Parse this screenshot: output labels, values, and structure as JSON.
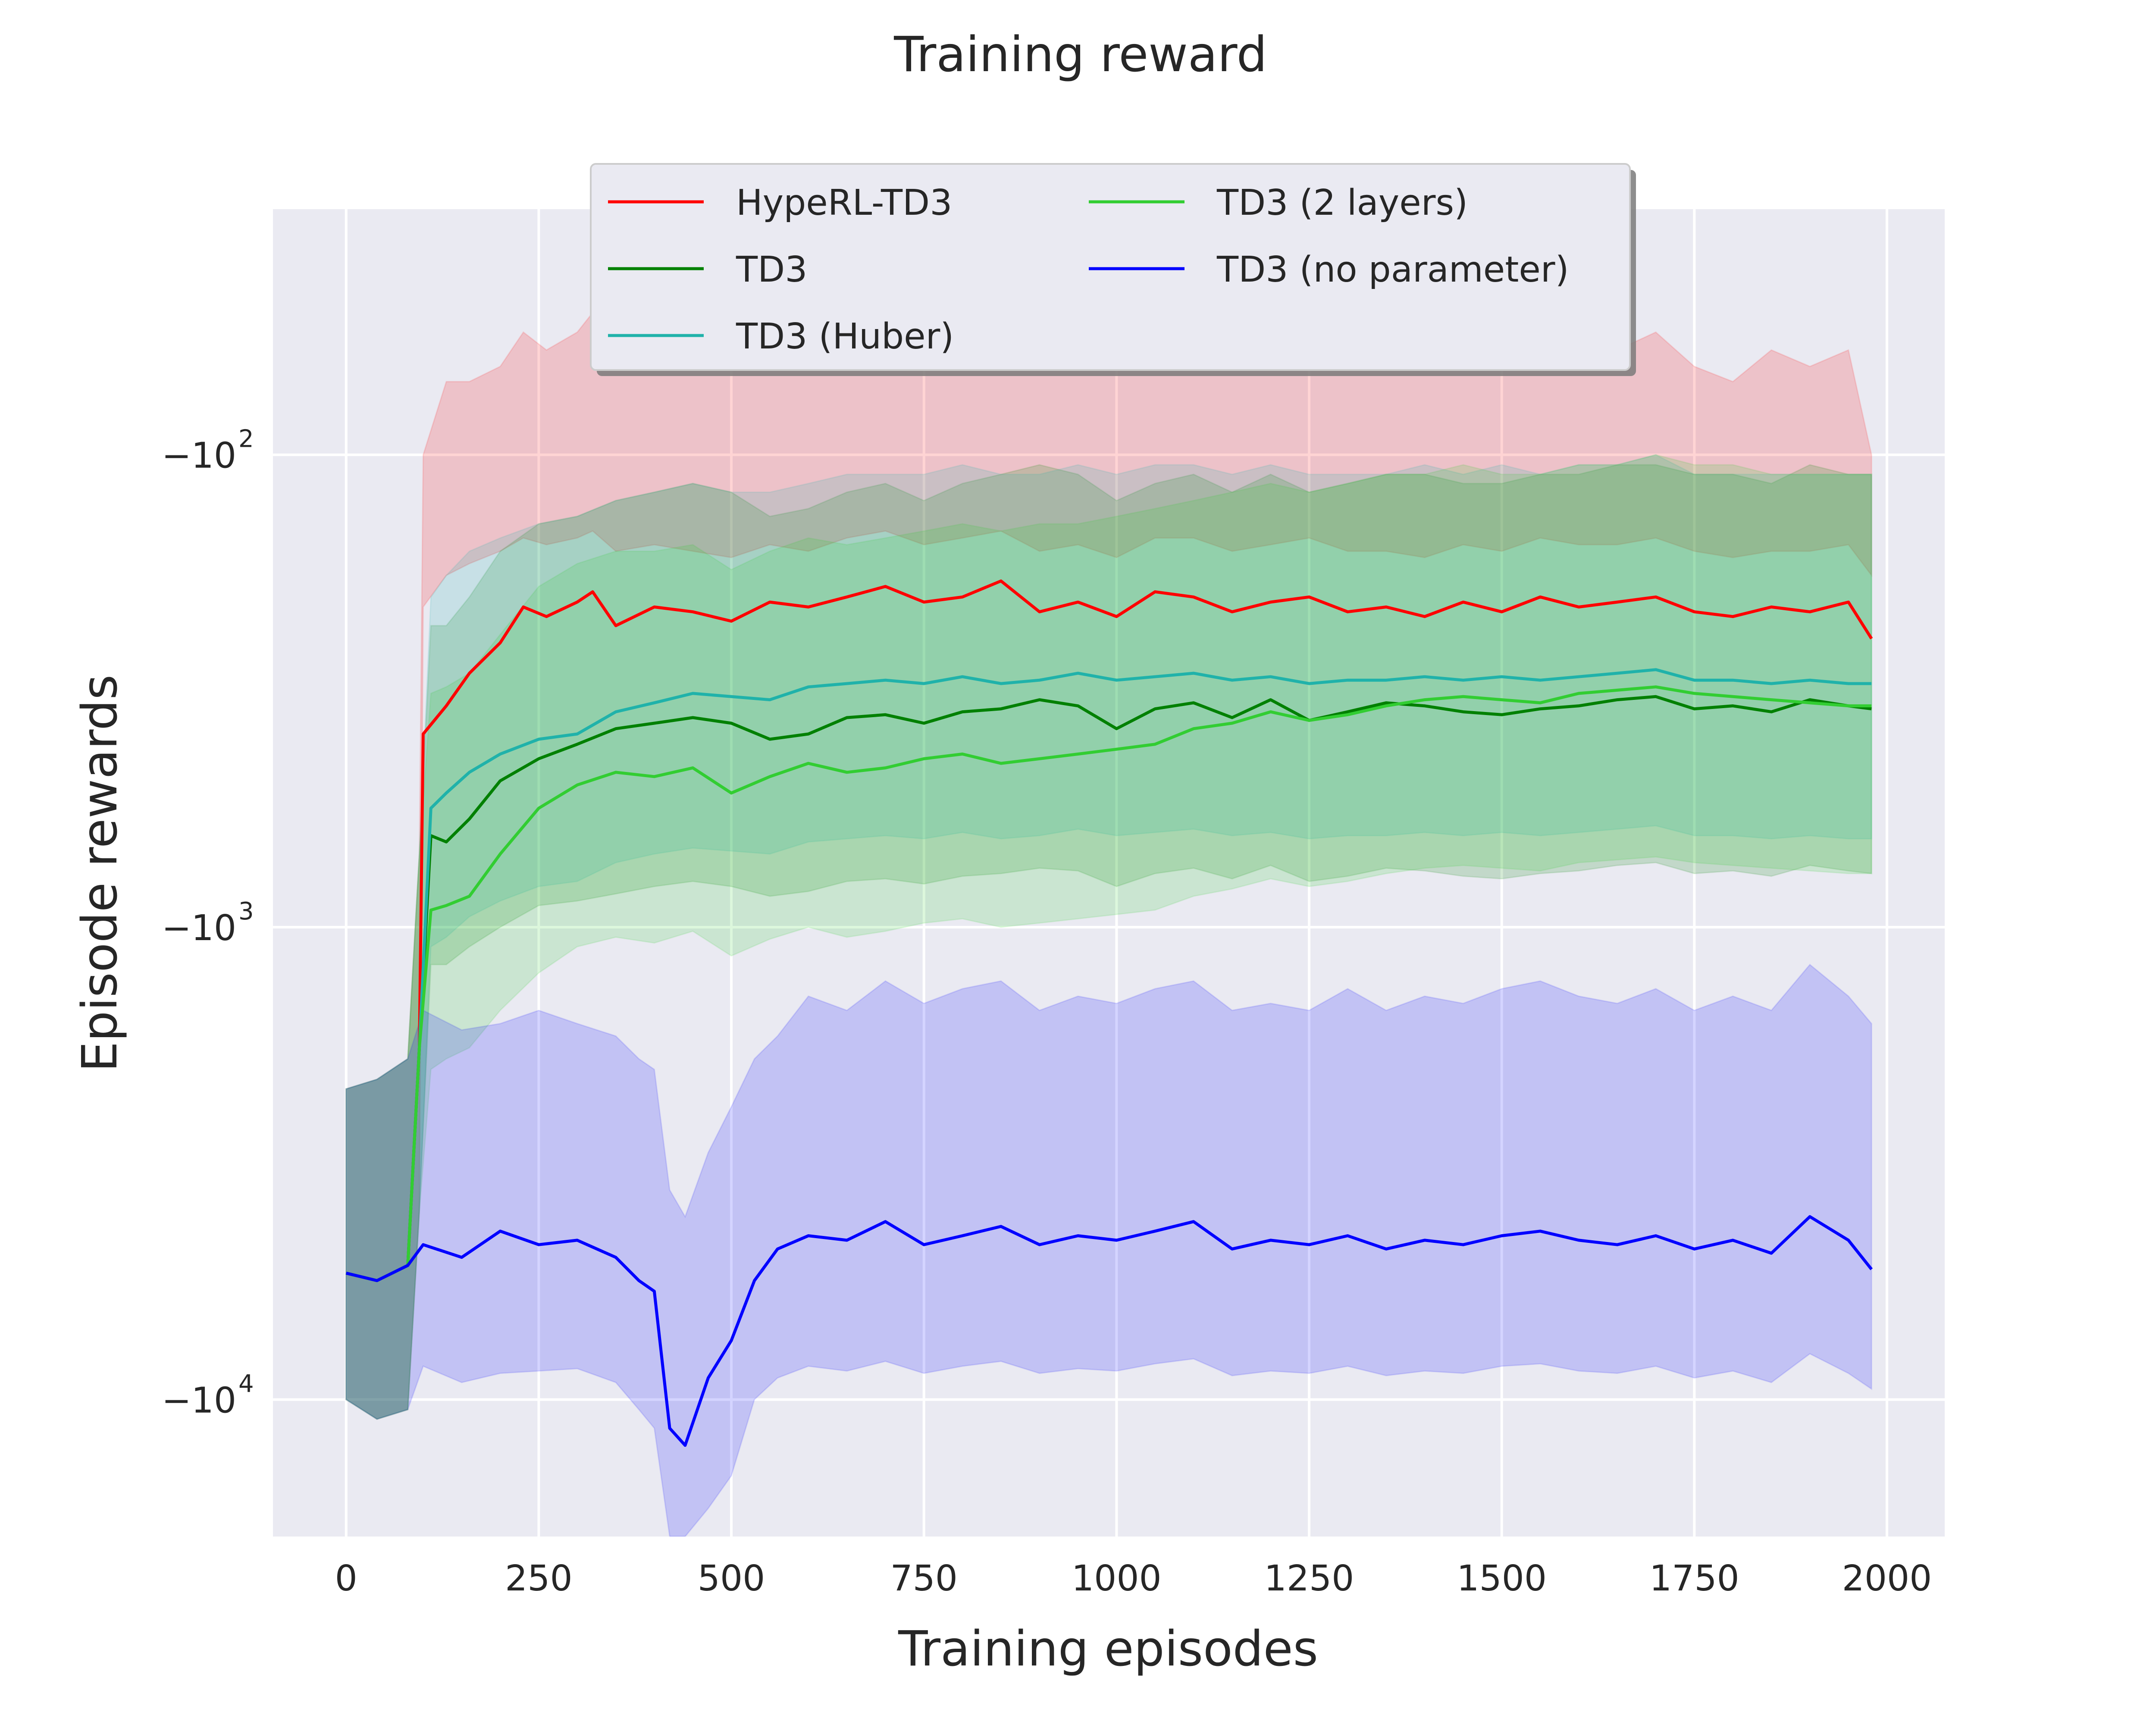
{
  "chart_data": {
    "type": "line",
    "title": "Training reward",
    "xlabel": "Training episodes",
    "ylabel": "Episode rewards",
    "y_scale": "symlog-negative",
    "xlim": [
      -95,
      2075
    ],
    "x_ticks": [
      0,
      250,
      500,
      750,
      1000,
      1250,
      1500,
      1750,
      2000
    ],
    "x_tick_labels": [
      "0",
      "250",
      "500",
      "750",
      "1000",
      "1250",
      "1500",
      "1750",
      "2000"
    ],
    "y_ticks": [
      {
        "value": -100,
        "base": "−10",
        "exp": "2"
      },
      {
        "value": -1000,
        "base": "−10",
        "exp": "3"
      },
      {
        "value": -10000,
        "base": "−10",
        "exp": "4"
      }
    ],
    "y_log10_range": [
      1.48,
      4.29
    ],
    "grid": true,
    "legend_location": "upper center",
    "legend_columns": 2,
    "series": [
      {
        "name": "HypeRL-TD3",
        "color": "#ff0000",
        "x": [
          0,
          40,
          80,
          95,
          100,
          130,
          160,
          200,
          230,
          260,
          300,
          320,
          350,
          400,
          450,
          500,
          550,
          600,
          650,
          700,
          750,
          800,
          850,
          900,
          950,
          1000,
          1050,
          1100,
          1150,
          1200,
          1250,
          1300,
          1350,
          1400,
          1450,
          1500,
          1550,
          1600,
          1650,
          1700,
          1750,
          1800,
          1850,
          1900,
          1950,
          1980
        ],
        "y": [
          -5400,
          -5600,
          -5200,
          -1800,
          -390,
          -340,
          -290,
          -250,
          -210,
          -220,
          -205,
          -195,
          -230,
          -210,
          -215,
          -225,
          -205,
          -210,
          -200,
          -190,
          -205,
          -200,
          -185,
          -215,
          -205,
          -220,
          -195,
          -200,
          -215,
          -205,
          -200,
          -215,
          -210,
          -220,
          -205,
          -215,
          -200,
          -210,
          -205,
          -200,
          -215,
          -220,
          -210,
          -215,
          -205,
          -245
        ],
        "band_upper": [
          -2200,
          -2100,
          -1900,
          -700,
          -100,
          -70,
          -70,
          -65,
          -55,
          -60,
          -55,
          -50,
          -60,
          -55,
          -60,
          -65,
          -55,
          -60,
          -55,
          -50,
          -60,
          -55,
          -50,
          -60,
          -55,
          -60,
          -55,
          -55,
          -60,
          -55,
          -55,
          -60,
          -60,
          -65,
          -60,
          -60,
          -55,
          -60,
          -60,
          -55,
          -65,
          -70,
          -60,
          -65,
          -60,
          -100
        ],
        "band_lower": [
          -10000,
          -11000,
          -10500,
          -4000,
          -210,
          -180,
          -170,
          -160,
          -150,
          -155,
          -150,
          -145,
          -160,
          -155,
          -160,
          -165,
          -155,
          -160,
          -150,
          -145,
          -155,
          -150,
          -145,
          -160,
          -155,
          -165,
          -150,
          -150,
          -160,
          -155,
          -150,
          -160,
          -160,
          -165,
          -155,
          -160,
          -150,
          -155,
          -155,
          -150,
          -160,
          -165,
          -160,
          -160,
          -155,
          -180
        ]
      },
      {
        "name": "TD3",
        "color": "#008000",
        "x": [
          0,
          40,
          80,
          95,
          110,
          130,
          160,
          200,
          250,
          300,
          350,
          400,
          450,
          500,
          550,
          600,
          650,
          700,
          750,
          800,
          850,
          900,
          950,
          1000,
          1050,
          1100,
          1150,
          1200,
          1250,
          1300,
          1350,
          1400,
          1450,
          1500,
          1550,
          1600,
          1650,
          1700,
          1750,
          1800,
          1850,
          1900,
          1950,
          1980
        ],
        "y": [
          -5400,
          -5600,
          -5200,
          -1800,
          -640,
          -660,
          -590,
          -490,
          -440,
          -410,
          -380,
          -370,
          -360,
          -370,
          -400,
          -390,
          -360,
          -355,
          -370,
          -350,
          -345,
          -330,
          -340,
          -380,
          -345,
          -335,
          -360,
          -330,
          -365,
          -350,
          -335,
          -340,
          -350,
          -355,
          -345,
          -340,
          -330,
          -325,
          -345,
          -340,
          -350,
          -330,
          -340,
          -345
        ],
        "band_upper": [
          -2200,
          -2100,
          -1900,
          -700,
          -230,
          -230,
          -200,
          -160,
          -140,
          -135,
          -125,
          -120,
          -115,
          -120,
          -135,
          -130,
          -120,
          -115,
          -125,
          -115,
          -110,
          -105,
          -110,
          -125,
          -115,
          -110,
          -120,
          -110,
          -120,
          -115,
          -110,
          -110,
          -115,
          -115,
          -110,
          -110,
          -105,
          -105,
          -110,
          -110,
          -115,
          -105,
          -110,
          -110
        ],
        "band_lower": [
          -10000,
          -11000,
          -10500,
          -4000,
          -1200,
          -1200,
          -1100,
          -1000,
          -900,
          -880,
          -850,
          -820,
          -800,
          -820,
          -860,
          -840,
          -800,
          -790,
          -810,
          -780,
          -770,
          -750,
          -760,
          -820,
          -770,
          -750,
          -790,
          -740,
          -800,
          -780,
          -750,
          -760,
          -780,
          -790,
          -770,
          -760,
          -740,
          -730,
          -770,
          -760,
          -780,
          -740,
          -760,
          -770
        ]
      },
      {
        "name": "TD3 (Huber)",
        "color": "#20b2aa",
        "x": [
          0,
          40,
          80,
          95,
          110,
          130,
          160,
          200,
          250,
          300,
          350,
          400,
          450,
          500,
          550,
          600,
          650,
          700,
          750,
          800,
          850,
          900,
          950,
          1000,
          1050,
          1100,
          1150,
          1200,
          1250,
          1300,
          1350,
          1400,
          1450,
          1500,
          1550,
          1600,
          1650,
          1700,
          1750,
          1800,
          1850,
          1900,
          1950,
          1980
        ],
        "y": [
          -5400,
          -5600,
          -5200,
          -1800,
          -560,
          -520,
          -470,
          -430,
          -400,
          -390,
          -350,
          -335,
          -320,
          -325,
          -330,
          -310,
          -305,
          -300,
          -305,
          -295,
          -305,
          -300,
          -290,
          -300,
          -295,
          -290,
          -300,
          -295,
          -305,
          -300,
          -300,
          -295,
          -300,
          -295,
          -300,
          -295,
          -290,
          -285,
          -300,
          -300,
          -305,
          -300,
          -305,
          -305
        ],
        "band_upper": [
          -2200,
          -2100,
          -1900,
          -700,
          -200,
          -180,
          -160,
          -150,
          -140,
          -135,
          -125,
          -120,
          -115,
          -120,
          -120,
          -115,
          -110,
          -110,
          -110,
          -105,
          -110,
          -110,
          -105,
          -110,
          -105,
          -105,
          -110,
          -105,
          -110,
          -110,
          -110,
          -105,
          -110,
          -105,
          -110,
          -105,
          -105,
          -100,
          -110,
          -110,
          -110,
          -110,
          -110,
          -110
        ],
        "band_lower": [
          -10000,
          -11000,
          -10500,
          -4000,
          -1100,
          -1050,
          -950,
          -880,
          -820,
          -800,
          -730,
          -700,
          -680,
          -690,
          -700,
          -660,
          -650,
          -640,
          -650,
          -630,
          -650,
          -640,
          -620,
          -640,
          -630,
          -620,
          -640,
          -630,
          -650,
          -640,
          -640,
          -630,
          -640,
          -630,
          -640,
          -630,
          -620,
          -610,
          -640,
          -640,
          -650,
          -640,
          -650,
          -650
        ]
      },
      {
        "name": "TD3 (2 layers)",
        "color": "#32cd32",
        "x": [
          0,
          40,
          80,
          95,
          110,
          130,
          160,
          200,
          250,
          300,
          350,
          400,
          450,
          500,
          550,
          600,
          650,
          700,
          750,
          800,
          850,
          900,
          950,
          1000,
          1050,
          1100,
          1150,
          1200,
          1250,
          1300,
          1350,
          1400,
          1450,
          1500,
          1550,
          1600,
          1650,
          1700,
          1750,
          1800,
          1850,
          1900,
          1950,
          1980
        ],
        "y": [
          -5400,
          -5600,
          -5200,
          -1800,
          -920,
          -900,
          -860,
          -700,
          -560,
          -500,
          -470,
          -480,
          -460,
          -520,
          -480,
          -450,
          -470,
          -460,
          -440,
          -430,
          -450,
          -440,
          -430,
          -420,
          -410,
          -380,
          -370,
          -350,
          -365,
          -355,
          -340,
          -330,
          -325,
          -330,
          -335,
          -320,
          -315,
          -310,
          -320,
          -325,
          -330,
          -335,
          -340,
          -340
        ],
        "band_upper": [
          -2200,
          -2100,
          -1900,
          -700,
          -320,
          -310,
          -290,
          -240,
          -190,
          -170,
          -160,
          -160,
          -155,
          -175,
          -160,
          -150,
          -155,
          -150,
          -145,
          -140,
          -145,
          -140,
          -140,
          -135,
          -130,
          -125,
          -120,
          -115,
          -120,
          -115,
          -110,
          -110,
          -105,
          -110,
          -110,
          -105,
          -105,
          -100,
          -105,
          -105,
          -110,
          -110,
          -110,
          -110
        ],
        "band_lower": [
          -10000,
          -11000,
          -10500,
          -4000,
          -2000,
          -1900,
          -1800,
          -1500,
          -1250,
          -1100,
          -1050,
          -1080,
          -1020,
          -1150,
          -1060,
          -1000,
          -1050,
          -1020,
          -980,
          -960,
          -1000,
          -980,
          -960,
          -940,
          -920,
          -860,
          -830,
          -790,
          -820,
          -800,
          -770,
          -750,
          -740,
          -750,
          -760,
          -730,
          -720,
          -710,
          -730,
          -740,
          -750,
          -760,
          -770,
          -770
        ]
      },
      {
        "name": "TD3 (no parameter)",
        "color": "#0000ff",
        "x": [
          0,
          40,
          80,
          100,
          150,
          200,
          250,
          300,
          350,
          380,
          400,
          420,
          440,
          470,
          500,
          530,
          560,
          600,
          650,
          700,
          750,
          800,
          850,
          900,
          950,
          1000,
          1050,
          1100,
          1150,
          1200,
          1250,
          1300,
          1350,
          1400,
          1450,
          1500,
          1550,
          1600,
          1650,
          1700,
          1750,
          1800,
          1850,
          1900,
          1950,
          1980
        ],
        "y": [
          -5400,
          -5600,
          -5200,
          -4700,
          -5000,
          -4400,
          -4700,
          -4600,
          -5000,
          -5600,
          -5900,
          -11500,
          -12500,
          -9000,
          -7500,
          -5600,
          -4800,
          -4500,
          -4600,
          -4200,
          -4700,
          -4500,
          -4300,
          -4700,
          -4500,
          -4600,
          -4400,
          -4200,
          -4800,
          -4600,
          -4700,
          -4500,
          -4800,
          -4600,
          -4700,
          -4500,
          -4400,
          -4600,
          -4700,
          -4500,
          -4800,
          -4600,
          -4900,
          -4100,
          -4600,
          -5300
        ],
        "band_upper": [
          -2200,
          -2100,
          -1900,
          -1500,
          -1650,
          -1600,
          -1500,
          -1600,
          -1700,
          -1900,
          -2000,
          -3600,
          -4100,
          -3000,
          -2400,
          -1900,
          -1700,
          -1400,
          -1500,
          -1300,
          -1450,
          -1350,
          -1300,
          -1500,
          -1400,
          -1450,
          -1350,
          -1300,
          -1500,
          -1450,
          -1500,
          -1350,
          -1500,
          -1400,
          -1450,
          -1350,
          -1300,
          -1400,
          -1450,
          -1350,
          -1500,
          -1400,
          -1500,
          -1200,
          -1400,
          -1600
        ],
        "band_lower": [
          -10000,
          -11000,
          -10500,
          -8500,
          -9200,
          -8800,
          -8700,
          -8600,
          -9200,
          -10500,
          -11500,
          -20000,
          -20000,
          -17000,
          -14500,
          -10000,
          -9000,
          -8500,
          -8700,
          -8300,
          -8800,
          -8500,
          -8300,
          -8800,
          -8600,
          -8700,
          -8400,
          -8200,
          -8900,
          -8700,
          -8800,
          -8500,
          -8900,
          -8700,
          -8800,
          -8500,
          -8400,
          -8700,
          -8800,
          -8500,
          -9000,
          -8700,
          -9200,
          -8000,
          -8800,
          -9500
        ]
      }
    ]
  }
}
